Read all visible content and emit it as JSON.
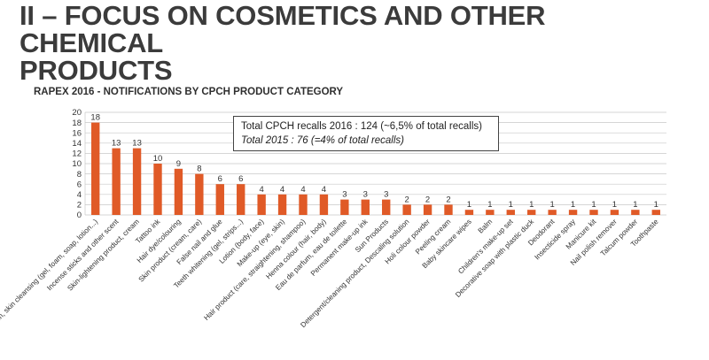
{
  "page": {
    "heading_line1": "II – FOCUS ON COSMETICS AND OTHER CHEMICAL",
    "heading_line2": "PRODUCTS",
    "subheading": "RAPEX 2016 - NOTIFICATIONS BY CPCH PRODUCT CATEGORY"
  },
  "annotation": {
    "line1": "Total CPCH recalls 2016 : 124 (~6,5% of total recalls)",
    "line2": "Total 2015 : 76 (=4% of total recalls)"
  },
  "colors": {
    "bar": "#e05a27",
    "grid": "#c8c8c8"
  },
  "chart_data": {
    "type": "bar",
    "title": "RAPEX 2016 - NOTIFICATIONS BY CPCH PRODUCT CATEGORY",
    "ylim": [
      0,
      20
    ],
    "yticks": [
      0,
      2,
      4,
      6,
      8,
      10,
      12,
      14,
      16,
      18,
      20
    ],
    "grid": true,
    "categories": [
      "Bath/body wash, skin cleansing (gel, foam, soap, lotion...)",
      "Incense sticks and other scent",
      "Skin-lightening product, cream",
      "Tattoo ink",
      "Hair dye/colouring",
      "Skin product (cream, care)",
      "False nail and glue",
      "Teeth whitening (gel, strips...)",
      "Lotion (body, face)",
      "Make-up (eye, skin)",
      "Hair product (care, straightening, shampoo)",
      "Henna colour (hair, body)",
      "Eau de parfum, eau de toilette",
      "Permanent make-up ink",
      "Sun Products",
      "Detergent/cleaning product, Descaling solution",
      "Holi colour powder",
      "Peeling cream",
      "Baby skincare wipes",
      "Balm",
      "Children's make-up set",
      "Decorative soap with plastic duck",
      "Deodorant",
      "Insecticide spray",
      "Manicure kit",
      "Nail polish remover",
      "Talcum powder",
      "Toothpaste"
    ],
    "values": [
      18,
      13,
      13,
      10,
      9,
      8,
      6,
      6,
      4,
      4,
      4,
      4,
      3,
      3,
      3,
      2,
      2,
      2,
      1,
      1,
      1,
      1,
      1,
      1,
      1,
      1,
      1,
      1
    ]
  }
}
